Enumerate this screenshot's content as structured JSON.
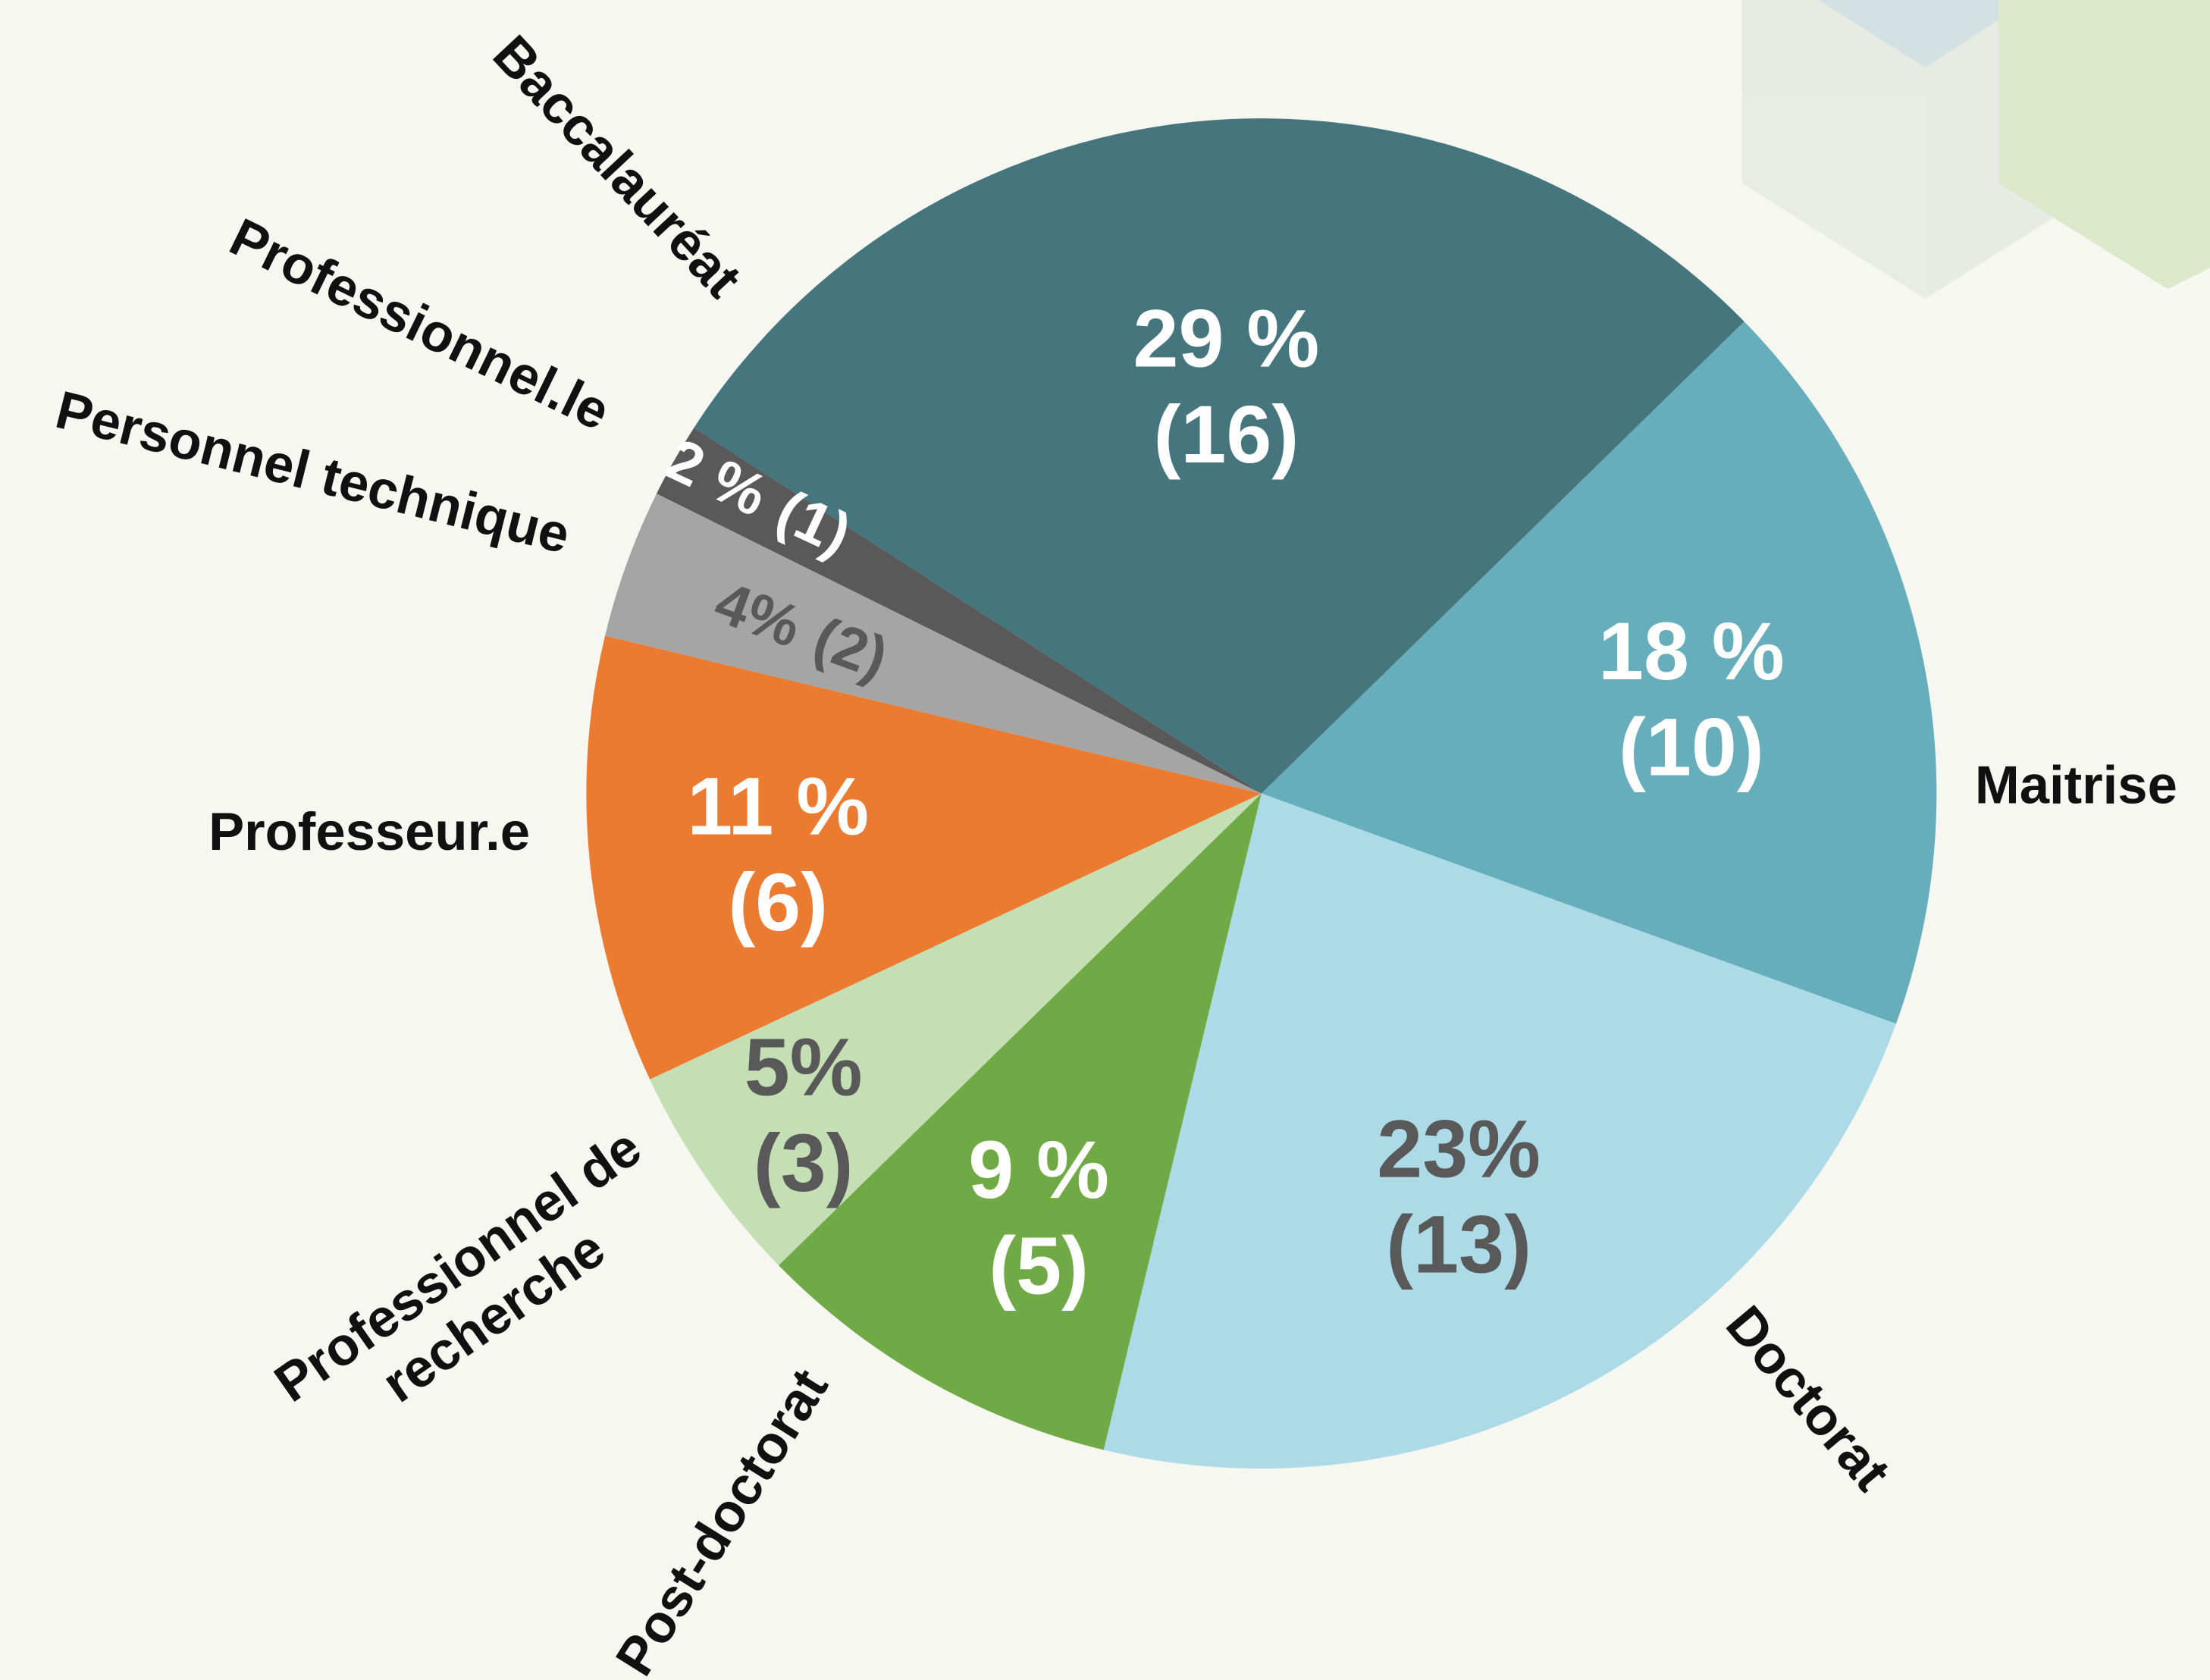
{
  "chart_data": {
    "type": "pie",
    "categories": [
      "Baccalauréat",
      "Maitrise",
      "Doctorat",
      "Post-doctorat",
      "Professionnel de recherche",
      "Professeur.e",
      "Personnel technique",
      "Professionnel.le"
    ],
    "values": [
      16,
      10,
      13,
      5,
      3,
      6,
      2,
      1
    ],
    "value_labels": [
      "(16)",
      "(10)",
      "(13)",
      "(5)",
      "(3)",
      "(6)",
      "(2)",
      "(1)"
    ],
    "percent_labels": [
      "29 %",
      "18 %",
      "23%",
      "9 %",
      "5%",
      "11 %",
      "4%",
      "2 %"
    ],
    "colors": [
      "#45767e",
      "#67aebd",
      "#acdae6",
      "#70aa46",
      "#c5dfb5",
      "#ec7b32",
      "#a5a5a5",
      "#595959"
    ],
    "label_colors": [
      "#ffffff",
      "#ffffff",
      "#595959",
      "#ffffff",
      "#595959",
      "#ffffff",
      "#595959",
      "#ffffff"
    ]
  }
}
